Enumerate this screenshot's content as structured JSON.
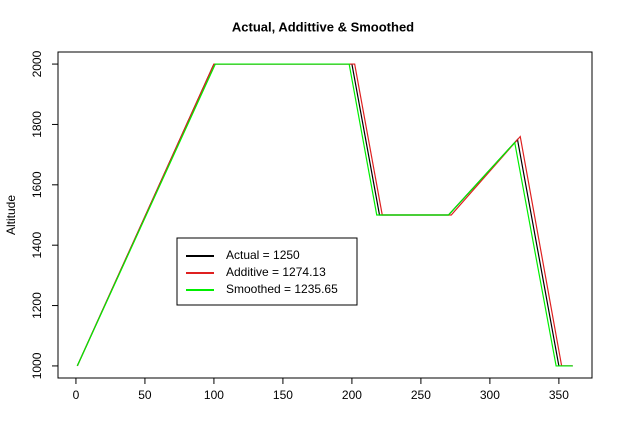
{
  "chart_data": {
    "type": "line",
    "title": "Actual, Addittive & Smoothed",
    "y_label": "Altitude",
    "xlim": [
      -13,
      374
    ],
    "ylim": [
      960,
      2040
    ],
    "xticks": [
      0,
      50,
      100,
      150,
      200,
      250,
      300,
      350
    ],
    "yticks": [
      1000,
      1200,
      1400,
      1600,
      1800,
      2000
    ],
    "series": [
      {
        "name": "Actual = 1250",
        "color": "#000000",
        "x": [
          1,
          100,
          200,
          220,
          270,
          320,
          350,
          360
        ],
        "values": [
          1000,
          2000,
          2000,
          1500,
          1500,
          1750,
          1000,
          1000
        ]
      },
      {
        "name": "Additive = 1274.13",
        "color": "#df2020",
        "x": [
          1,
          100,
          202,
          222,
          272,
          322,
          352,
          360
        ],
        "values": [
          1000,
          2000,
          2000,
          1500,
          1500,
          1760,
          1000,
          1000
        ]
      },
      {
        "name": "Smoothed = 1235.65",
        "color": "#00ee00",
        "x": [
          1,
          101,
          198,
          218,
          270,
          318,
          348,
          360
        ],
        "values": [
          1000,
          2000,
          2000,
          1500,
          1500,
          1740,
          1000,
          1000
        ]
      }
    ]
  }
}
